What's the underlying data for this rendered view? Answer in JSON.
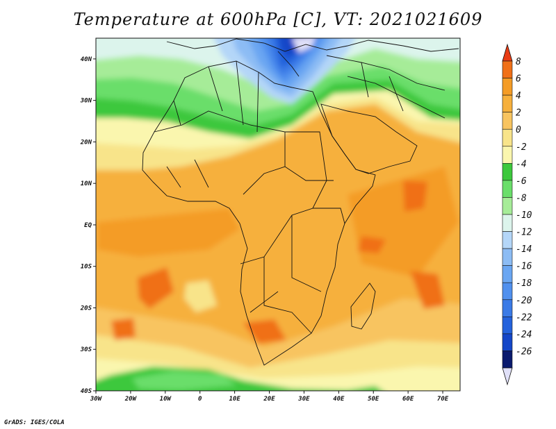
{
  "title": "Temperature at 600hPa [C], VT: 2021021609",
  "credit": "GrADS: IGES/COLA",
  "colors": {
    "c_below": "#e0e0f8",
    "c_m26": "#0a1a6e",
    "c_m24": "#1446c8",
    "c_m22": "#2462dc",
    "c_m20": "#3a7ae6",
    "c_m18": "#5090ee",
    "c_m16": "#6aa6f2",
    "c_m14": "#8cbcf4",
    "c_m12": "#b4d6f8",
    "c_m10": "#dcf4ec",
    "c_m8": "#a6ec98",
    "c_m6": "#6ade6a",
    "c_m4": "#3cc83c",
    "c_m2": "#faf6ae",
    "c_0": "#f8e48a",
    "c_2": "#f8c460",
    "c_4": "#f6b03c",
    "c_6": "#f49c26",
    "c_8": "#f07018",
    "c_above": "#e83c14",
    "border": "#111111"
  },
  "map": {
    "lon_range": [
      -30,
      75
    ],
    "lat_range": [
      -40,
      45
    ],
    "lon_ticks": [
      {
        "value": -30,
        "label": "30W"
      },
      {
        "value": -20,
        "label": "20W"
      },
      {
        "value": -10,
        "label": "10W"
      },
      {
        "value": 0,
        "label": "0"
      },
      {
        "value": 10,
        "label": "10E"
      },
      {
        "value": 20,
        "label": "20E"
      },
      {
        "value": 30,
        "label": "30E"
      },
      {
        "value": 40,
        "label": "40E"
      },
      {
        "value": 50,
        "label": "50E"
      },
      {
        "value": 60,
        "label": "60E"
      },
      {
        "value": 70,
        "label": "70E"
      }
    ],
    "lat_ticks": [
      {
        "value": 40,
        "label": "40N"
      },
      {
        "value": 30,
        "label": "30N"
      },
      {
        "value": 20,
        "label": "20N"
      },
      {
        "value": 10,
        "label": "10N"
      },
      {
        "value": 0,
        "label": "EQ"
      },
      {
        "value": -10,
        "label": "10S"
      },
      {
        "value": -20,
        "label": "20S"
      },
      {
        "value": -30,
        "label": "30S"
      },
      {
        "value": -40,
        "label": "40S"
      }
    ]
  },
  "colorbar": {
    "labels": [
      "8",
      "6",
      "4",
      "2",
      "0",
      "-2",
      "-4",
      "-6",
      "-8",
      "-10",
      "-12",
      "-14",
      "-16",
      "-18",
      "-20",
      "-22",
      "-24",
      "-26"
    ]
  }
}
